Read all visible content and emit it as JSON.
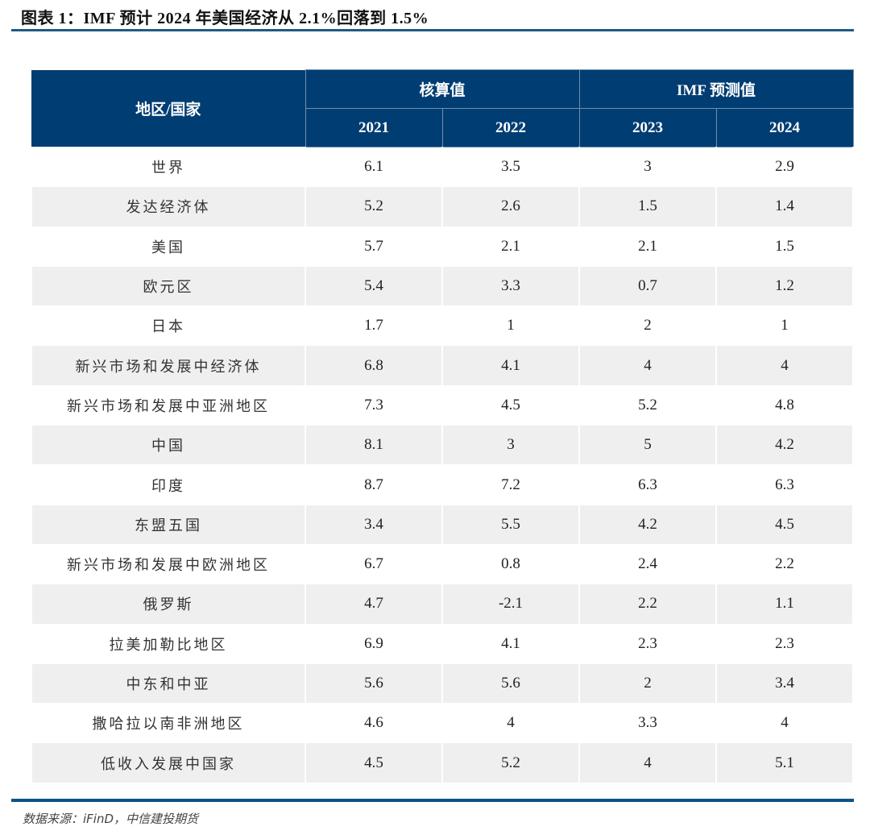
{
  "title": "图表 1：IMF 预计 2024 年美国经济从 2.1%回落到 1.5%",
  "table": {
    "region_header": "地区/国家",
    "group_headers": [
      "核算值",
      "IMF 预测值"
    ],
    "years": [
      "2021",
      "2022",
      "2023",
      "2024"
    ],
    "rows": [
      {
        "name": "世界",
        "values": [
          "6.1",
          "3.5",
          "3",
          "2.9"
        ]
      },
      {
        "name": "发达经济体",
        "values": [
          "5.2",
          "2.6",
          "1.5",
          "1.4"
        ]
      },
      {
        "name": "美国",
        "values": [
          "5.7",
          "2.1",
          "2.1",
          "1.5"
        ]
      },
      {
        "name": "欧元区",
        "values": [
          "5.4",
          "3.3",
          "0.7",
          "1.2"
        ]
      },
      {
        "name": "日本",
        "values": [
          "1.7",
          "1",
          "2",
          "1"
        ]
      },
      {
        "name": "新兴市场和发展中经济体",
        "values": [
          "6.8",
          "4.1",
          "4",
          "4"
        ]
      },
      {
        "name": "新兴市场和发展中亚洲地区",
        "values": [
          "7.3",
          "4.5",
          "5.2",
          "4.8"
        ]
      },
      {
        "name": "中国",
        "values": [
          "8.1",
          "3",
          "5",
          "4.2"
        ]
      },
      {
        "name": "印度",
        "values": [
          "8.7",
          "7.2",
          "6.3",
          "6.3"
        ]
      },
      {
        "name": "东盟五国",
        "values": [
          "3.4",
          "5.5",
          "4.2",
          "4.5"
        ]
      },
      {
        "name": "新兴市场和发展中欧洲地区",
        "values": [
          "6.7",
          "0.8",
          "2.4",
          "2.2"
        ]
      },
      {
        "name": "俄罗斯",
        "values": [
          "4.7",
          "-2.1",
          "2.2",
          "1.1"
        ]
      },
      {
        "name": "拉美加勒比地区",
        "values": [
          "6.9",
          "4.1",
          "2.3",
          "2.3"
        ]
      },
      {
        "name": "中东和中亚",
        "values": [
          "5.6",
          "5.6",
          "2",
          "3.4"
        ]
      },
      {
        "name": "撒哈拉以南非洲地区",
        "values": [
          "4.6",
          "4",
          "3.3",
          "4"
        ]
      },
      {
        "name": "低收入发展中国家",
        "values": [
          "4.5",
          "5.2",
          "4",
          "5.1"
        ]
      }
    ]
  },
  "source": "数据来源：iFinD，中信建投期货",
  "colors": {
    "header_bg": "#003d73",
    "alt_row": "#efefef",
    "rule": "#0d5287"
  }
}
